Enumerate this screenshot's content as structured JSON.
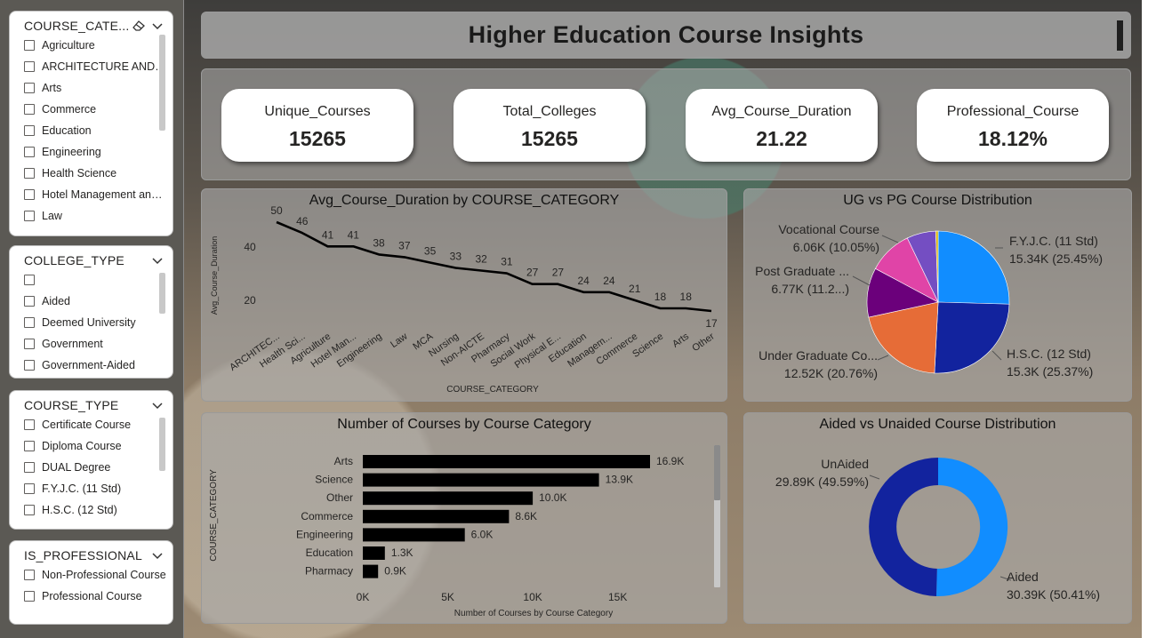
{
  "slicers": {
    "course_category": {
      "title": "COURSE_CATE...",
      "options": [
        "Agriculture",
        "ARCHITECTURE AND TO...",
        "Arts",
        "Commerce",
        "Education",
        "Engineering",
        "Health Science",
        "Hotel Management and ...",
        "Law"
      ]
    },
    "college_type": {
      "title": "COLLEGE_TYPE",
      "options": [
        "",
        "Aided",
        "Deemed University",
        "Government",
        "Government-Aided"
      ]
    },
    "course_type": {
      "title": "COURSE_TYPE",
      "options": [
        "Certificate Course",
        "Diploma Course",
        "DUAL Degree",
        "F.Y.J.C. (11 Std)",
        "H.S.C. (12 Std)"
      ]
    },
    "is_professional": {
      "title": "IS_PROFESSIONAL",
      "options": [
        "Non-Professional Course",
        "Professional Course"
      ]
    }
  },
  "title": "Higher Education Course Insights",
  "kpis": [
    {
      "label": "Unique_Courses",
      "value": "15265"
    },
    {
      "label": "Total_Colleges",
      "value": "15265"
    },
    {
      "label": "Avg_Course_Duration",
      "value": "21.22"
    },
    {
      "label": "Professional_Course",
      "value": "18.12%"
    }
  ],
  "charts": {
    "line": {
      "title": "Avg_Course_Duration by COURSE_CATEGORY",
      "chart_data": {
        "type": "line",
        "categories": [
          "ARCHITEC...",
          "Health Sci...",
          "Agriculture",
          "Hotel Man...",
          "Engineering",
          "Law",
          "MCA",
          "Nursing",
          "Non-AICTE",
          "Pharmacy",
          "Social Work",
          "Physical E...",
          "Education",
          "Managem...",
          "Commerce",
          "Science",
          "Arts",
          "Other"
        ],
        "values": [
          50,
          46,
          41,
          41,
          38,
          37,
          35,
          33,
          32,
          31,
          27,
          27,
          24,
          24,
          21,
          18,
          18,
          17
        ],
        "xlabel": "COURSE_CATEGORY",
        "ylabel": "Avg_Course_Duration",
        "y_ticks": [
          "40",
          "20"
        ],
        "color": "#000000"
      }
    },
    "ugpg": {
      "title": "UG vs PG Course Distribution",
      "chart_data": {
        "type": "pie",
        "slices": [
          {
            "name": "F.Y.J.C. (11 Std)",
            "value_label": "15.34K (25.45%)",
            "percent": 25.45,
            "color": "#118DFF"
          },
          {
            "name": "H.S.C. (12 Std)",
            "value_label": "15.3K (25.37%)",
            "percent": 25.37,
            "color": "#12239E"
          },
          {
            "name": "Under Graduate Co...",
            "value_label": "12.52K (20.76%)",
            "percent": 20.76,
            "color": "#E66C37"
          },
          {
            "name": "Post Graduate ...",
            "value_label": "6.77K (11.2...)",
            "percent": 11.23,
            "color": "#6B007B"
          },
          {
            "name": "Vocational Course",
            "value_label": "6.06K (10.05%)",
            "percent": 10.05,
            "color": "#E044A7"
          },
          {
            "name": "",
            "value_label": "",
            "percent": 6.6,
            "color": "#744EC2"
          },
          {
            "name": "",
            "value_label": "",
            "percent": 0.54,
            "color": "#D9B300"
          }
        ]
      }
    },
    "bar": {
      "title": "Number of Courses by Course Category",
      "chart_data": {
        "type": "bar",
        "orientation": "horizontal",
        "categories": [
          "Arts",
          "Science",
          "Other",
          "Commerce",
          "Engineering",
          "Education",
          "Pharmacy"
        ],
        "values": [
          16900,
          13900,
          10000,
          8600,
          6000,
          1300,
          900
        ],
        "value_labels": [
          "16.9K",
          "13.9K",
          "10.0K",
          "8.6K",
          "6.0K",
          "1.3K",
          "0.9K"
        ],
        "x_ticks": [
          "0K",
          "5K",
          "10K",
          "15K"
        ],
        "xlim": [
          0,
          18000
        ],
        "xlabel": "Number of Courses by Course Category",
        "ylabel": "COURSE_CATEGORY",
        "color": "#000000"
      }
    },
    "aided": {
      "title": "Aided vs Unaided Course Distribution",
      "chart_data": {
        "type": "pie",
        "donut": true,
        "slices": [
          {
            "name": "Aided",
            "value_label": "30.39K (50.41%)",
            "percent": 50.41,
            "color": "#118DFF"
          },
          {
            "name": "UnAided",
            "value_label": "29.89K (49.59%)",
            "percent": 49.59,
            "color": "#12239E"
          }
        ]
      }
    }
  }
}
